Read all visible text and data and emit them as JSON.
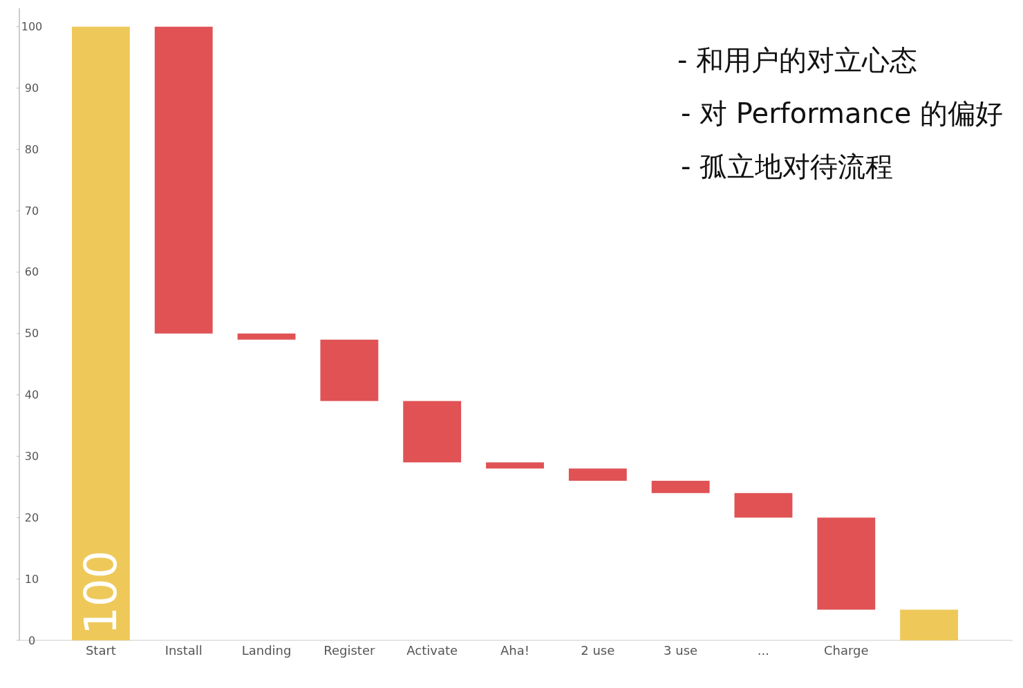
{
  "chart_data": {
    "type": "bar",
    "categories": [
      "Start",
      "Install",
      "Landing",
      "Register",
      "Activate",
      "Aha!",
      "2 use",
      "3 use",
      "...",
      "Charge",
      null
    ],
    "values": [
      100,
      50,
      1,
      10,
      10,
      1,
      2,
      2,
      4,
      15,
      5
    ],
    "base": [
      0,
      50,
      49,
      39,
      29,
      28,
      26,
      24,
      20,
      5,
      0
    ],
    "colors": [
      "#eec95a",
      "#e05254",
      "#e05254",
      "#e05254",
      "#e05254",
      "#e05254",
      "#e05254",
      "#e05254",
      "#e05254",
      "#e05254",
      "#eec95a"
    ],
    "value_labels": [
      "100",
      null,
      null,
      null,
      null,
      null,
      null,
      null,
      null,
      null,
      null
    ],
    "ylim": [
      0,
      103
    ],
    "yticks": [
      0,
      10,
      20,
      30,
      40,
      50,
      60,
      70,
      80,
      90,
      100
    ],
    "grid": false,
    "annotations": [
      "- 和用户的对立心态",
      "- 对 Performance 的偏好",
      "- 孤立地对待流程"
    ]
  }
}
